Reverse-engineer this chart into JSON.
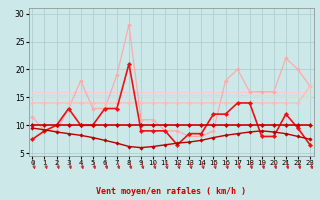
{
  "xlabel": "Vent moyen/en rafales ( km/h )",
  "background_color": "#cce8e8",
  "grid_color": "#aacccc",
  "x_ticks": [
    0,
    1,
    2,
    3,
    4,
    5,
    6,
    7,
    8,
    9,
    10,
    11,
    12,
    13,
    14,
    15,
    16,
    17,
    18,
    19,
    20,
    21,
    22,
    23
  ],
  "y_ticks": [
    5,
    10,
    15,
    20,
    25,
    30
  ],
  "ylim": [
    4.5,
    31
  ],
  "xlim": [
    -0.3,
    23.3
  ],
  "series": [
    {
      "name": "rafales_light1",
      "color": "#ffaaaa",
      "lw": 0.9,
      "marker": "D",
      "markersize": 2.0,
      "x": [
        0,
        1,
        2,
        3,
        4,
        5,
        6,
        7,
        8,
        9,
        10,
        11,
        12,
        13,
        14,
        15,
        16,
        17,
        18,
        19,
        20,
        21,
        22,
        23
      ],
      "y": [
        11.5,
        9,
        9,
        13,
        18,
        13,
        13,
        19,
        28,
        11,
        11,
        9,
        9,
        8,
        8,
        9,
        18,
        20,
        16,
        16,
        16,
        22,
        20,
        17
      ]
    },
    {
      "name": "mean_light_flat1",
      "color": "#ffbbbb",
      "lw": 0.9,
      "marker": "D",
      "markersize": 2.0,
      "x": [
        0,
        1,
        2,
        3,
        4,
        5,
        6,
        7,
        8,
        9,
        10,
        11,
        12,
        13,
        14,
        15,
        16,
        17,
        18,
        19,
        20,
        21,
        22,
        23
      ],
      "y": [
        14,
        14,
        14,
        14,
        14,
        14,
        14,
        14,
        14,
        14,
        14,
        14,
        14,
        14,
        14,
        14,
        14,
        14,
        14,
        14,
        14,
        14,
        14,
        17
      ]
    },
    {
      "name": "flat_line_15",
      "color": "#ffcccc",
      "lw": 0.8,
      "marker": null,
      "markersize": 0,
      "x": [
        0,
        23
      ],
      "y": [
        15,
        15
      ]
    },
    {
      "name": "flat_line_155",
      "color": "#ffcccc",
      "lw": 0.8,
      "marker": null,
      "markersize": 0,
      "x": [
        0,
        23
      ],
      "y": [
        15.5,
        15.5
      ]
    },
    {
      "name": "flat_line_16",
      "color": "#ffcccc",
      "lw": 0.8,
      "marker": null,
      "markersize": 0,
      "x": [
        0,
        23
      ],
      "y": [
        16,
        16
      ]
    },
    {
      "name": "dark_rafales",
      "color": "#ee1111",
      "lw": 1.2,
      "marker": "D",
      "markersize": 2.2,
      "x": [
        0,
        1,
        2,
        3,
        4,
        5,
        6,
        7,
        8,
        9,
        10,
        11,
        12,
        13,
        14,
        15,
        16,
        17,
        18,
        19,
        20,
        21,
        22,
        23
      ],
      "y": [
        7.5,
        9,
        10,
        13,
        10,
        10,
        13,
        13,
        21,
        9,
        9,
        9,
        6.5,
        8.5,
        8.5,
        12,
        12,
        14,
        14,
        8,
        8,
        12,
        9.5,
        6.5
      ]
    },
    {
      "name": "dark_mean_flat",
      "color": "#cc0000",
      "lw": 1.2,
      "marker": "D",
      "markersize": 2.2,
      "x": [
        0,
        1,
        2,
        3,
        4,
        5,
        6,
        7,
        8,
        9,
        10,
        11,
        12,
        13,
        14,
        15,
        16,
        17,
        18,
        19,
        20,
        21,
        22,
        23
      ],
      "y": [
        10,
        10,
        10,
        10,
        10,
        10,
        10,
        10,
        10,
        10,
        10,
        10,
        10,
        10,
        10,
        10,
        10,
        10,
        10,
        10,
        10,
        10,
        10,
        10
      ]
    },
    {
      "name": "dark_decreasing",
      "color": "#bb0000",
      "lw": 1.0,
      "marker": "D",
      "markersize": 1.8,
      "x": [
        0,
        1,
        2,
        3,
        4,
        5,
        6,
        7,
        8,
        9,
        10,
        11,
        12,
        13,
        14,
        15,
        16,
        17,
        18,
        19,
        20,
        21,
        22,
        23
      ],
      "y": [
        9.5,
        9.2,
        8.8,
        8.5,
        8.2,
        7.8,
        7.3,
        6.8,
        6.2,
        6.0,
        6.2,
        6.5,
        6.8,
        7.0,
        7.3,
        7.8,
        8.2,
        8.5,
        8.8,
        9.0,
        8.8,
        8.5,
        8.0,
        7.5
      ]
    }
  ]
}
